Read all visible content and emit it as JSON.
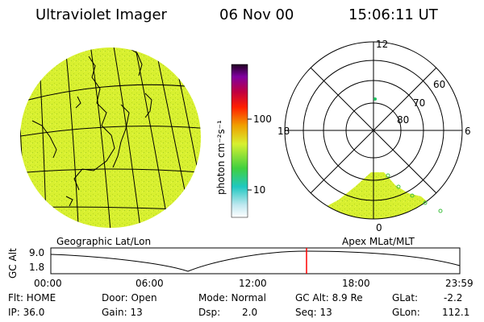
{
  "header": {
    "instrument": "Ultraviolet Imager",
    "date": "06 Nov 00",
    "time": "15:06:11 UT"
  },
  "colorbar": {
    "unit_label": "photon cm⁻²s⁻¹",
    "ticks": [
      "100",
      "10"
    ]
  },
  "polar_plot": {
    "mlt_labels": {
      "top": "12",
      "left": "18",
      "right": "6",
      "bottom": "0"
    },
    "lat_labels": [
      "60",
      "70",
      "80"
    ]
  },
  "map_labels": {
    "left": "Geographic Lat/Lon",
    "right": "Apex MLat/MLT"
  },
  "timeline": {
    "axis_label": "GC Alt",
    "y_ticks": [
      "9.0",
      "1.8"
    ],
    "x_ticks": [
      "00:00",
      "06:00",
      "12:00",
      "18:00",
      "23:59"
    ],
    "marker_time": "15:06"
  },
  "info": {
    "filter": "Flt: HOME",
    "ip": "IP: 36.0",
    "door": "Door: Open",
    "gain": "Gain: 13",
    "mode": "Mode: Normal",
    "dsp_label": "Dsp:",
    "dsp_value": "2.0",
    "gc_alt": "GC Alt: 8.9 Re",
    "seq": "Seq: 13",
    "glat_label": "GLat:",
    "glat_value": "-2.2",
    "glon_label": "GLon:",
    "glon_value": "112.1"
  },
  "colors": {
    "fill": "#d8f030",
    "fill_dark": "#b8d820",
    "marker": "#ff0000"
  }
}
